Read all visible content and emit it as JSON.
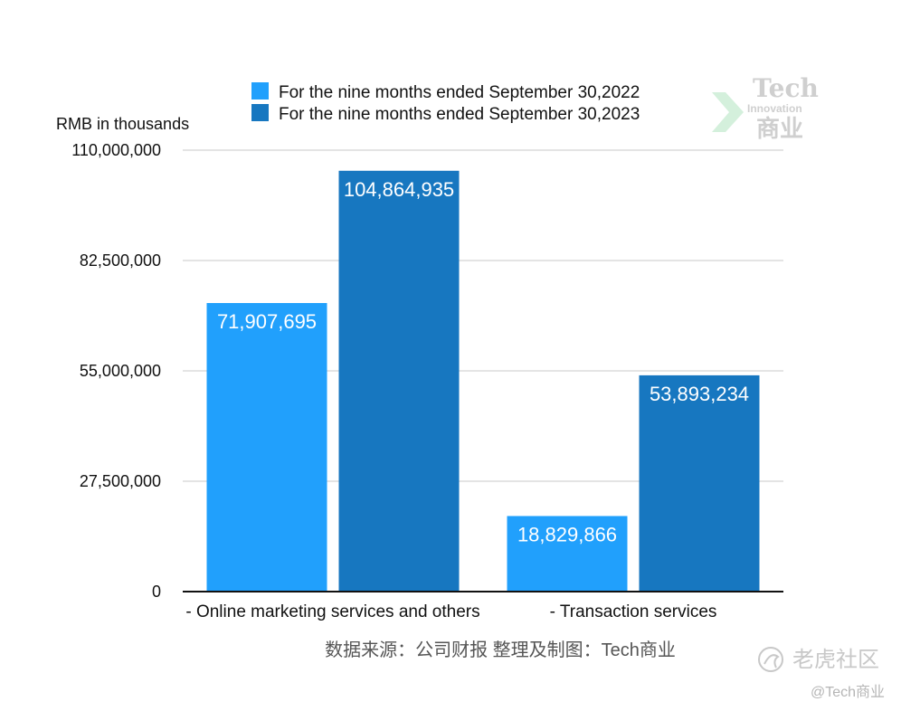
{
  "chart_data": {
    "type": "bar",
    "unit_label": "RMB in thousands",
    "categories": [
      "- Online marketing services and others",
      "- Transaction services"
    ],
    "series": [
      {
        "name": "For the nine months ended September 30,2022",
        "color": "#21a0fc",
        "values": [
          71907695,
          18829866
        ],
        "labels": [
          "71,907,695",
          "18,829,866"
        ]
      },
      {
        "name": "For the nine months ended September 30,2023",
        "color": "#1777c0",
        "values": [
          104864935,
          53893234
        ],
        "labels": [
          "104,864,935",
          "53,893,234"
        ]
      }
    ],
    "ylim": [
      0,
      110000000
    ],
    "yticks": [
      0,
      27500000,
      55000000,
      82500000,
      110000000
    ],
    "ytick_labels": [
      "0",
      "27,500,000",
      "55,000,000",
      "82,500,000",
      "110,000,000"
    ],
    "grid": true,
    "legend_position": "top"
  },
  "source_note": "数据来源：公司财报 整理及制图：Tech商业",
  "watermark": {
    "line1": "Tech",
    "line2": "Innovation",
    "line3": "商业"
  },
  "tiger_watermark": {
    "name": "老虎社区",
    "handle": "@Tech商业"
  }
}
